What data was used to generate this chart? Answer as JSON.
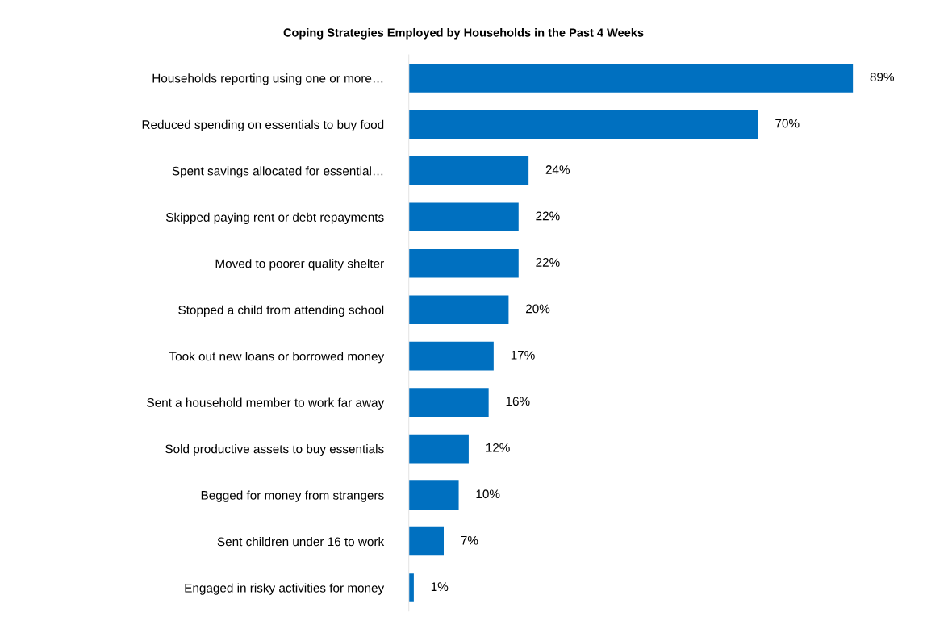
{
  "chart_data": {
    "type": "bar",
    "orientation": "horizontal",
    "title": "Coping Strategies Employed by Households in the Past 4 Weeks",
    "categories": [
      "Households reporting using one or more…",
      "Reduced spending on essentials to buy food",
      "Spent savings allocated for essential…",
      "Skipped paying rent or debt repayments",
      "Moved to poorer quality shelter",
      "Stopped a child from attending school",
      "Took out new loans or borrowed money",
      "Sent a household member to work far away",
      "Sold productive assets to buy essentials",
      "Begged for money from strangers",
      "Sent children under 16 to work",
      "Engaged in risky activities for money"
    ],
    "values": [
      89,
      70,
      24,
      22,
      22,
      20,
      17,
      16,
      12,
      10,
      7,
      1
    ],
    "value_labels": [
      "89%",
      "70%",
      "24%",
      "22%",
      "22%",
      "20%",
      "17%",
      "16%",
      "12%",
      "10%",
      "7%",
      "1%"
    ],
    "color": "#0070c0",
    "grid": false,
    "legend": false
  }
}
